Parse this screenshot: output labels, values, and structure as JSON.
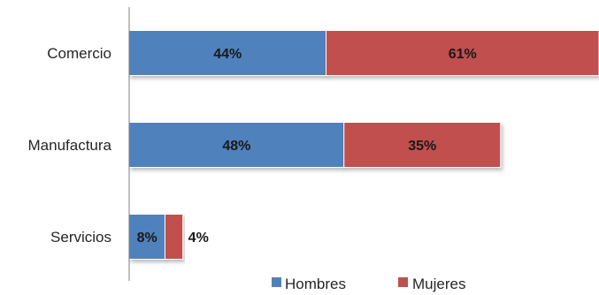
{
  "colors": {
    "hombres": "#4F81BD",
    "mujeres": "#C0504D",
    "axis": "#7f7f7f"
  },
  "legend": {
    "placement": "bottom",
    "items": [
      {
        "label": "Hombres",
        "color": "#4F81BD"
      },
      {
        "label": "Mujeres",
        "color": "#C0504D"
      }
    ]
  },
  "chart_data": {
    "type": "bar",
    "orientation": "horizontal",
    "stacked": true,
    "categories": [
      "Comercio",
      "Manufactura",
      "Servicios"
    ],
    "series": [
      {
        "name": "Hombres",
        "values": [
          44,
          48,
          8
        ],
        "labels": [
          "44%",
          "48%",
          "8%"
        ]
      },
      {
        "name": "Mujeres",
        "values": [
          61,
          35,
          4
        ],
        "labels": [
          "61%",
          "35%",
          "4%"
        ]
      }
    ],
    "title": "",
    "xlabel": "",
    "ylabel": "",
    "xlim": [
      0,
      105
    ],
    "grid": false,
    "legend_placement": "bottom"
  }
}
